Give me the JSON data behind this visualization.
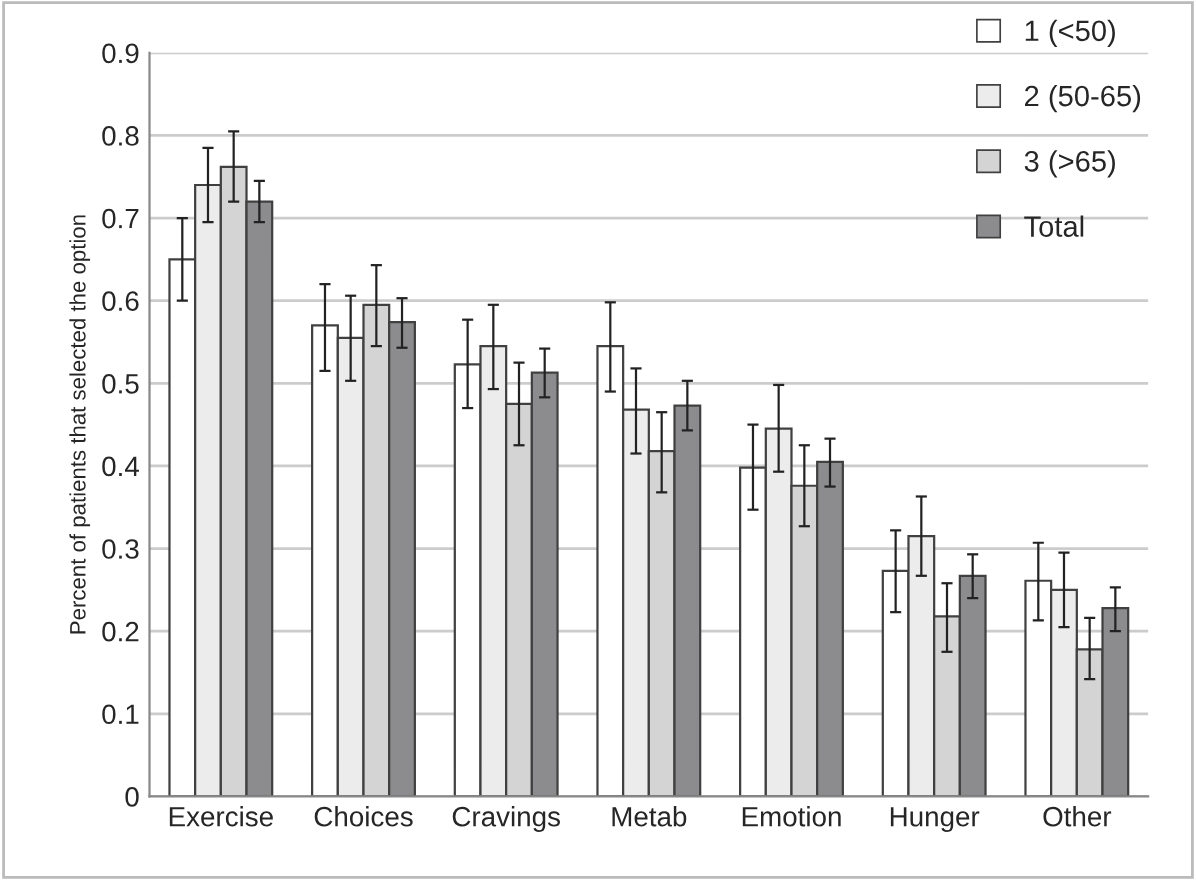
{
  "chart_data": {
    "type": "bar",
    "ylabel": "Percent of patients that selected the option",
    "categories": [
      "Exercise",
      "Choices",
      "Cravings",
      "Metab",
      "Emotion",
      "Hunger",
      "Other"
    ],
    "series": [
      {
        "name": "1 (<50)",
        "color": "#ffffff",
        "values": [
          0.65,
          0.57,
          0.523,
          0.545,
          0.398,
          0.273,
          0.261
        ],
        "errors": [
          [
            0.6,
            0.7
          ],
          [
            0.515,
            0.62
          ],
          [
            0.47,
            0.577
          ],
          [
            0.49,
            0.598
          ],
          [
            0.347,
            0.45
          ],
          [
            0.223,
            0.322
          ],
          [
            0.213,
            0.307
          ]
        ]
      },
      {
        "name": "2 (50-65)",
        "color": "#ececec",
        "values": [
          0.74,
          0.555,
          0.545,
          0.468,
          0.445,
          0.315,
          0.25
        ],
        "errors": [
          [
            0.695,
            0.785
          ],
          [
            0.503,
            0.606
          ],
          [
            0.493,
            0.595
          ],
          [
            0.415,
            0.518
          ],
          [
            0.393,
            0.498
          ],
          [
            0.267,
            0.363
          ],
          [
            0.205,
            0.295
          ]
        ]
      },
      {
        "name": "3 (>65)",
        "color": "#d4d4d4",
        "values": [
          0.762,
          0.595,
          0.475,
          0.418,
          0.376,
          0.218,
          0.178
        ],
        "errors": [
          [
            0.72,
            0.805
          ],
          [
            0.545,
            0.643
          ],
          [
            0.425,
            0.525
          ],
          [
            0.368,
            0.465
          ],
          [
            0.327,
            0.425
          ],
          [
            0.175,
            0.258
          ],
          [
            0.142,
            0.216
          ]
        ]
      },
      {
        "name": "Total",
        "color": "#8c8c8e",
        "values": [
          0.72,
          0.574,
          0.513,
          0.473,
          0.405,
          0.267,
          0.228
        ],
        "errors": [
          [
            0.695,
            0.745
          ],
          [
            0.543,
            0.603
          ],
          [
            0.483,
            0.542
          ],
          [
            0.443,
            0.503
          ],
          [
            0.375,
            0.433
          ],
          [
            0.24,
            0.293
          ],
          [
            0.2,
            0.253
          ]
        ]
      }
    ],
    "ylim": [
      0,
      0.9
    ],
    "yticks": [
      0,
      0.1,
      0.2,
      0.3,
      0.4,
      0.5,
      0.6,
      0.7,
      0.8,
      0.9
    ],
    "grid": "y",
    "legend": "top right"
  }
}
